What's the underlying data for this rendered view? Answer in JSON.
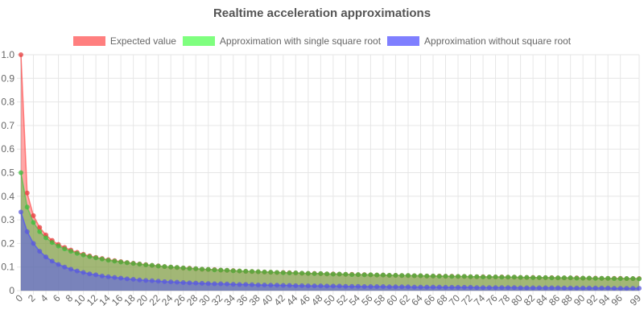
{
  "chart_data": {
    "type": "area",
    "title": "Realtime acceleration approximations",
    "xlabel": "",
    "ylabel": "",
    "ylim": [
      0,
      1.0
    ],
    "xlim": [
      0,
      99
    ],
    "grid": true,
    "legend_position": "top",
    "x_tick_labels": [
      "0",
      "2",
      "4",
      "6",
      "8",
      "10",
      "12",
      "14",
      "16",
      "18",
      "20",
      "22",
      "24",
      "26",
      "28",
      "30",
      "32",
      "34",
      "36",
      "38",
      "40",
      "42",
      "44",
      "46",
      "48",
      "50",
      "52",
      "54",
      "56",
      "58",
      "60",
      "62",
      "64",
      "66",
      "68",
      "70",
      "72",
      "74",
      "76",
      "78",
      "80",
      "82",
      "84",
      "86",
      "88",
      "90",
      "92",
      "94",
      "96",
      "99"
    ],
    "y_tick_labels": [
      "0",
      "0.1",
      "0.2",
      "0.3",
      "0.4",
      "0.5",
      "0.6",
      "0.7",
      "0.8",
      "0.9",
      "1.0"
    ],
    "x": [
      0,
      1,
      2,
      3,
      4,
      5,
      6,
      7,
      8,
      9,
      10,
      11,
      12,
      13,
      14,
      15,
      16,
      17,
      18,
      19,
      20,
      21,
      22,
      23,
      24,
      25,
      26,
      27,
      28,
      29,
      30,
      31,
      32,
      33,
      34,
      35,
      36,
      37,
      38,
      39,
      40,
      41,
      42,
      43,
      44,
      45,
      46,
      47,
      48,
      49,
      50,
      51,
      52,
      53,
      54,
      55,
      56,
      57,
      58,
      59,
      60,
      61,
      62,
      63,
      64,
      65,
      66,
      67,
      68,
      69,
      70,
      71,
      72,
      73,
      74,
      75,
      76,
      77,
      78,
      79,
      80,
      81,
      82,
      83,
      84,
      85,
      86,
      87,
      88,
      89,
      90,
      91,
      92,
      93,
      94,
      95,
      96,
      97,
      98,
      99
    ],
    "series": [
      {
        "name": "Expected value",
        "color": "#ff6a6a",
        "values": [
          1,
          0.414,
          0.318,
          0.268,
          0.236,
          0.213,
          0.196,
          0.183,
          0.172,
          0.162,
          0.154,
          0.147,
          0.141,
          0.136,
          0.131,
          0.127,
          0.123,
          0.119,
          0.116,
          0.113,
          0.11,
          0.107,
          0.105,
          0.102,
          0.1,
          0.098,
          0.096,
          0.095,
          0.093,
          0.091,
          0.09,
          0.089,
          0.087,
          0.086,
          0.085,
          0.083,
          0.082,
          0.081,
          0.08,
          0.079,
          0.078,
          0.077,
          0.077,
          0.076,
          0.075,
          0.074,
          0.073,
          0.073,
          0.072,
          0.071,
          0.071,
          0.07,
          0.069,
          0.069,
          0.068,
          0.068,
          0.067,
          0.066,
          0.066,
          0.065,
          0.065,
          0.064,
          0.064,
          0.063,
          0.063,
          0.062,
          0.062,
          0.062,
          0.061,
          0.061,
          0.06,
          0.06,
          0.059,
          0.059,
          0.059,
          0.058,
          0.058,
          0.058,
          0.057,
          0.057,
          0.056,
          0.056,
          0.056,
          0.055,
          0.055,
          0.055,
          0.054,
          0.054,
          0.054,
          0.054,
          0.053,
          0.053,
          0.053,
          0.052,
          0.052,
          0.052,
          0.052,
          0.051,
          0.051,
          0.051
        ]
      },
      {
        "name": "Approximation with single square root",
        "color": "#6aff6a",
        "values": [
          0.5,
          0.354,
          0.289,
          0.25,
          0.224,
          0.204,
          0.189,
          0.177,
          0.167,
          0.158,
          0.151,
          0.144,
          0.139,
          0.134,
          0.129,
          0.125,
          0.121,
          0.118,
          0.115,
          0.112,
          0.109,
          0.107,
          0.104,
          0.102,
          0.1,
          0.098,
          0.096,
          0.094,
          0.093,
          0.091,
          0.09,
          0.088,
          0.087,
          0.086,
          0.084,
          0.083,
          0.082,
          0.081,
          0.08,
          0.079,
          0.078,
          0.077,
          0.076,
          0.075,
          0.075,
          0.074,
          0.073,
          0.072,
          0.072,
          0.071,
          0.07,
          0.07,
          0.069,
          0.068,
          0.068,
          0.067,
          0.067,
          0.066,
          0.066,
          0.065,
          0.065,
          0.064,
          0.064,
          0.063,
          0.063,
          0.062,
          0.062,
          0.061,
          0.061,
          0.06,
          0.06,
          0.06,
          0.059,
          0.059,
          0.058,
          0.058,
          0.058,
          0.057,
          0.057,
          0.057,
          0.056,
          0.056,
          0.055,
          0.055,
          0.055,
          0.054,
          0.054,
          0.054,
          0.054,
          0.053,
          0.053,
          0.053,
          0.052,
          0.052,
          0.052,
          0.051,
          0.051,
          0.051,
          0.051,
          0.05
        ]
      },
      {
        "name": "Approximation without square root",
        "color": "#6a6aff",
        "values": [
          0.333,
          0.25,
          0.2,
          0.167,
          0.143,
          0.125,
          0.111,
          0.1,
          0.091,
          0.083,
          0.077,
          0.071,
          0.067,
          0.062,
          0.059,
          0.056,
          0.053,
          0.05,
          0.048,
          0.045,
          0.043,
          0.042,
          0.04,
          0.038,
          0.037,
          0.036,
          0.034,
          0.033,
          0.032,
          0.031,
          0.03,
          0.029,
          0.029,
          0.028,
          0.027,
          0.026,
          0.026,
          0.025,
          0.024,
          0.024,
          0.023,
          0.023,
          0.022,
          0.022,
          0.021,
          0.021,
          0.02,
          0.02,
          0.02,
          0.019,
          0.019,
          0.019,
          0.018,
          0.018,
          0.018,
          0.017,
          0.017,
          0.017,
          0.017,
          0.016,
          0.016,
          0.016,
          0.016,
          0.015,
          0.015,
          0.015,
          0.015,
          0.015,
          0.014,
          0.014,
          0.014,
          0.014,
          0.014,
          0.013,
          0.013,
          0.013,
          0.013,
          0.013,
          0.013,
          0.013,
          0.012,
          0.012,
          0.012,
          0.012,
          0.012,
          0.012,
          0.012,
          0.011,
          0.011,
          0.011,
          0.011,
          0.011,
          0.011,
          0.011,
          0.011,
          0.01,
          0.01,
          0.01,
          0.01,
          0.01
        ]
      }
    ]
  }
}
